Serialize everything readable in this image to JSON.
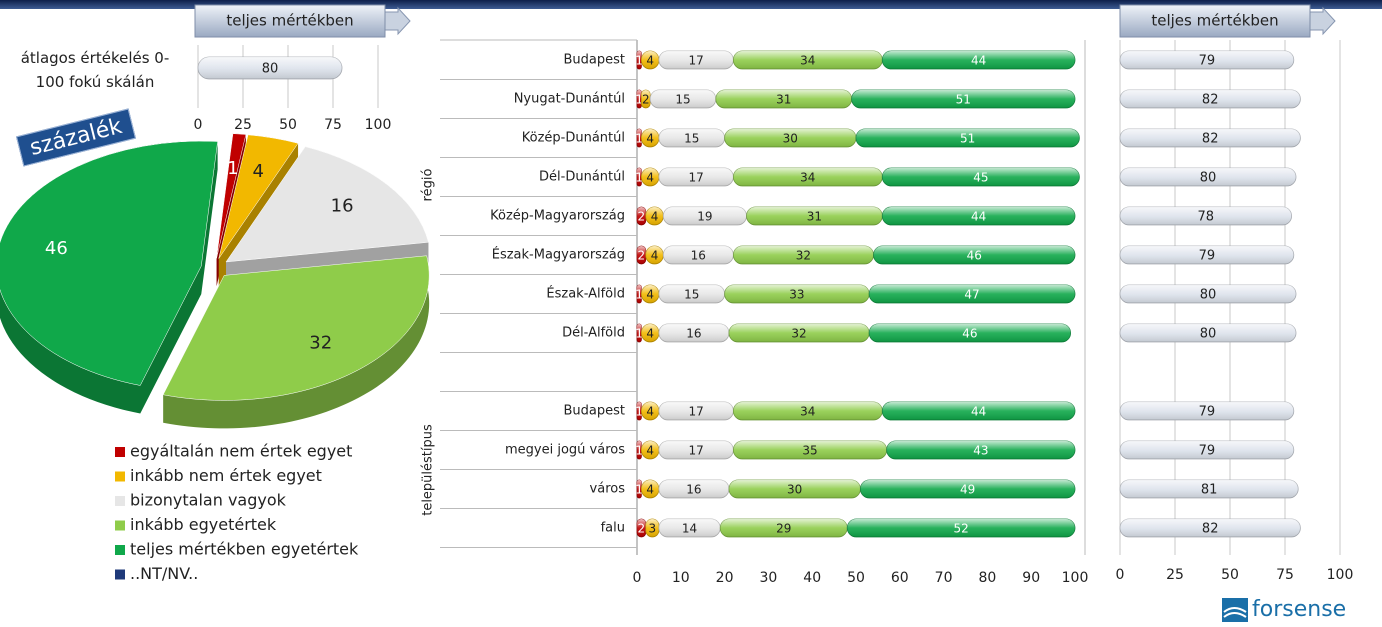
{
  "chart_data": [
    {
      "type": "bar",
      "title": "teljes mértékben",
      "note": "átlagos értékelés 0-100 fokú skálán",
      "values": [
        80
      ],
      "color": "#dde3ec",
      "xlim": [
        0,
        100
      ],
      "xticks": [
        0,
        25,
        50,
        75,
        100
      ],
      "grid": true
    },
    {
      "type": "pie",
      "badge": "százalék",
      "values": [
        1,
        4,
        16,
        32,
        46,
        0
      ],
      "colors": [
        "#c00000",
        "#f2b800",
        "#e6e6e6",
        "#8fcc4a",
        "#10a84a",
        "#1f3a7a"
      ]
    },
    {
      "type": "stacked_bar",
      "group_labels": [
        "régió",
        "településtípus"
      ],
      "categories": [
        "Budapest",
        "Nyugat-Dunántúl",
        "Közép-Dunántúl",
        "Dél-Dunántúl",
        "Közép-Magyarország",
        "Észak-Magyarország",
        "Észak-Alföld",
        "Dél-Alföld",
        null,
        "Budapest",
        "megyei jogú város",
        "város",
        "falu"
      ],
      "series": [
        {
          "name": "egyáltalán nem értek egyet",
          "color": "#c00000",
          "values": [
            1,
            1,
            1,
            1,
            2,
            2,
            1,
            1,
            null,
            1,
            1,
            1,
            2
          ]
        },
        {
          "name": "inkább nem értek egyet",
          "color": "#f2b800",
          "values": [
            4,
            2,
            4,
            4,
            4,
            4,
            4,
            4,
            null,
            4,
            4,
            4,
            3
          ]
        },
        {
          "name": "bizonytalan vagyok",
          "color": "#e6e6e6",
          "values": [
            17,
            15,
            15,
            17,
            19,
            16,
            15,
            16,
            null,
            17,
            17,
            16,
            14
          ]
        },
        {
          "name": "inkább egyetértek",
          "color": "#8fcc4a",
          "values": [
            34,
            31,
            30,
            34,
            31,
            32,
            33,
            32,
            null,
            34,
            35,
            30,
            29
          ]
        },
        {
          "name": "teljes mértékben egyetértek",
          "color": "#10a84a",
          "values": [
            44,
            51,
            51,
            45,
            44,
            46,
            47,
            46,
            null,
            44,
            43,
            49,
            52
          ]
        },
        {
          "name": "..NT/NV..",
          "color": "#1f3a7a",
          "values": [
            0,
            0,
            0,
            0,
            0,
            0,
            0,
            0,
            null,
            0,
            0,
            0,
            0
          ]
        }
      ],
      "xlim": [
        0,
        100
      ],
      "xticks": [
        0,
        10,
        20,
        30,
        40,
        50,
        60,
        70,
        80,
        90,
        100
      ]
    },
    {
      "type": "bar",
      "title": "teljes mértékben",
      "values": [
        79,
        82,
        82,
        80,
        78,
        79,
        80,
        80,
        null,
        79,
        79,
        81,
        82
      ],
      "color": "#dde3ec",
      "xlim": [
        0,
        100
      ],
      "xticks": [
        0,
        25,
        50,
        75,
        100
      ],
      "grid": true
    }
  ],
  "logo": "forsense"
}
